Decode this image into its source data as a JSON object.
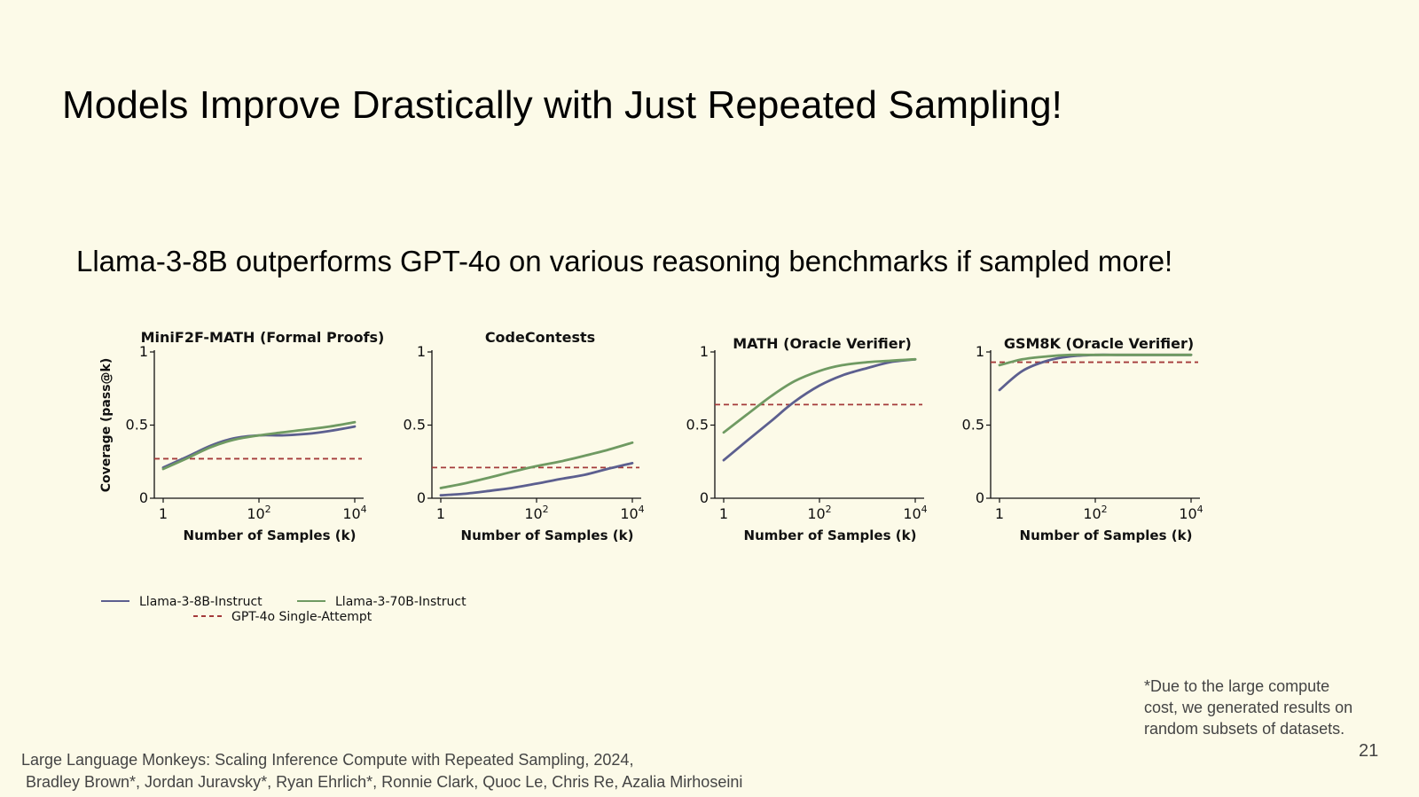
{
  "slide": {
    "title": "Models Improve Drastically with Just Repeated Sampling!",
    "subtitle": "Llama-3-8B outperforms GPT-4o on various reasoning benchmarks if sampled more!",
    "footnote": [
      "*Due to the large compute",
      "cost, we generated results on",
      "random subsets of datasets."
    ],
    "citation": [
      "Large Language Monkeys: Scaling Inference Compute with Repeated Sampling, 2024,",
      " Bradley Brown*, Jordan Juravsky*, Ryan Ehrlich*, Ronnie Clark, Quoc Le, Chris Re, Azalia Mirhoseini"
    ],
    "page_number": "21"
  },
  "colors": {
    "llama8b": "#5c5f8f",
    "llama70b": "#6f9a62",
    "gpt4o": "#a43a3a",
    "background": "#fcfae8"
  },
  "legend": {
    "items": [
      {
        "key": "llama8b",
        "label": "Llama-3-8B-Instruct",
        "style": "solid"
      },
      {
        "key": "llama70b",
        "label": "Llama-3-70B-Instruct",
        "style": "solid"
      },
      {
        "key": "gpt4o",
        "label": "GPT-4o Single-Attempt",
        "style": "dashed"
      }
    ]
  },
  "chart_data": [
    {
      "type": "line",
      "title": "MiniF2F-MATH (Formal Proofs)",
      "xlabel": "Number of Samples (k)",
      "ylabel": "Coverage (pass@k)",
      "xscale": "log10",
      "xlim": [
        1,
        10000
      ],
      "ylim": [
        0,
        1
      ],
      "xticks": [
        "1",
        "10^2",
        "10^4"
      ],
      "yticks": [
        "0",
        "0.5",
        "1"
      ],
      "series": [
        {
          "name": "Llama-3-8B-Instruct",
          "key": "llama8b",
          "x": [
            1,
            3,
            10,
            30,
            100,
            300,
            1000,
            3000,
            10000
          ],
          "y": [
            0.21,
            0.28,
            0.36,
            0.41,
            0.43,
            0.43,
            0.44,
            0.46,
            0.49
          ]
        },
        {
          "name": "Llama-3-70B-Instruct",
          "key": "llama70b",
          "x": [
            1,
            3,
            10,
            30,
            100,
            300,
            1000,
            3000,
            10000
          ],
          "y": [
            0.2,
            0.27,
            0.35,
            0.4,
            0.43,
            0.45,
            0.47,
            0.49,
            0.52
          ]
        }
      ],
      "reference": {
        "name": "GPT-4o Single-Attempt",
        "key": "gpt4o",
        "y": 0.27
      }
    },
    {
      "type": "line",
      "title": "CodeContests",
      "xlabel": "Number of Samples (k)",
      "ylabel": "",
      "xscale": "log10",
      "xlim": [
        1,
        10000
      ],
      "ylim": [
        0,
        1
      ],
      "xticks": [
        "1",
        "10^2",
        "10^4"
      ],
      "yticks": [
        "0",
        "0.5",
        "1"
      ],
      "series": [
        {
          "name": "Llama-3-8B-Instruct",
          "key": "llama8b",
          "x": [
            1,
            3,
            10,
            30,
            100,
            300,
            1000,
            3000,
            10000
          ],
          "y": [
            0.02,
            0.03,
            0.05,
            0.07,
            0.1,
            0.13,
            0.16,
            0.2,
            0.24
          ]
        },
        {
          "name": "Llama-3-70B-Instruct",
          "key": "llama70b",
          "x": [
            1,
            3,
            10,
            30,
            100,
            300,
            1000,
            3000,
            10000
          ],
          "y": [
            0.07,
            0.1,
            0.14,
            0.18,
            0.22,
            0.25,
            0.29,
            0.33,
            0.38
          ]
        }
      ],
      "reference": {
        "name": "GPT-4o Single-Attempt",
        "key": "gpt4o",
        "y": 0.21
      }
    },
    {
      "type": "line",
      "title": "MATH (Oracle Verifier)",
      "xlabel": "Number of Samples (k)",
      "ylabel": "",
      "xscale": "log10",
      "xlim": [
        1,
        10000
      ],
      "ylim": [
        0,
        1
      ],
      "xticks": [
        "1",
        "10^2",
        "10^4"
      ],
      "yticks": [
        "0",
        "0.5",
        "1"
      ],
      "series": [
        {
          "name": "Llama-3-8B-Instruct",
          "key": "llama8b",
          "x": [
            1,
            3,
            10,
            30,
            100,
            300,
            1000,
            3000,
            10000
          ],
          "y": [
            0.26,
            0.39,
            0.53,
            0.66,
            0.77,
            0.84,
            0.89,
            0.93,
            0.95
          ]
        },
        {
          "name": "Llama-3-70B-Instruct",
          "key": "llama70b",
          "x": [
            1,
            3,
            10,
            30,
            100,
            300,
            1000,
            3000,
            10000
          ],
          "y": [
            0.45,
            0.57,
            0.7,
            0.8,
            0.87,
            0.91,
            0.93,
            0.94,
            0.95
          ]
        }
      ],
      "reference": {
        "name": "GPT-4o Single-Attempt",
        "key": "gpt4o",
        "y": 0.64
      }
    },
    {
      "type": "line",
      "title": "GSM8K (Oracle Verifier)",
      "xlabel": "Number of Samples (k)",
      "ylabel": "",
      "xscale": "log10",
      "xlim": [
        1,
        10000
      ],
      "ylim": [
        0,
        1
      ],
      "xticks": [
        "1",
        "10^2",
        "10^4"
      ],
      "yticks": [
        "0",
        "0.5",
        "1"
      ],
      "series": [
        {
          "name": "Llama-3-8B-Instruct",
          "key": "llama8b",
          "x": [
            1,
            3,
            10,
            30,
            100,
            300,
            1000,
            3000,
            10000
          ],
          "y": [
            0.74,
            0.87,
            0.94,
            0.97,
            0.98,
            0.98,
            0.98,
            0.98,
            0.98
          ]
        },
        {
          "name": "Llama-3-70B-Instruct",
          "key": "llama70b",
          "x": [
            1,
            3,
            10,
            30,
            100,
            300,
            1000,
            3000,
            10000
          ],
          "y": [
            0.91,
            0.95,
            0.97,
            0.98,
            0.98,
            0.98,
            0.98,
            0.98,
            0.98
          ]
        }
      ],
      "reference": {
        "name": "GPT-4o Single-Attempt",
        "key": "gpt4o",
        "y": 0.93
      }
    }
  ]
}
